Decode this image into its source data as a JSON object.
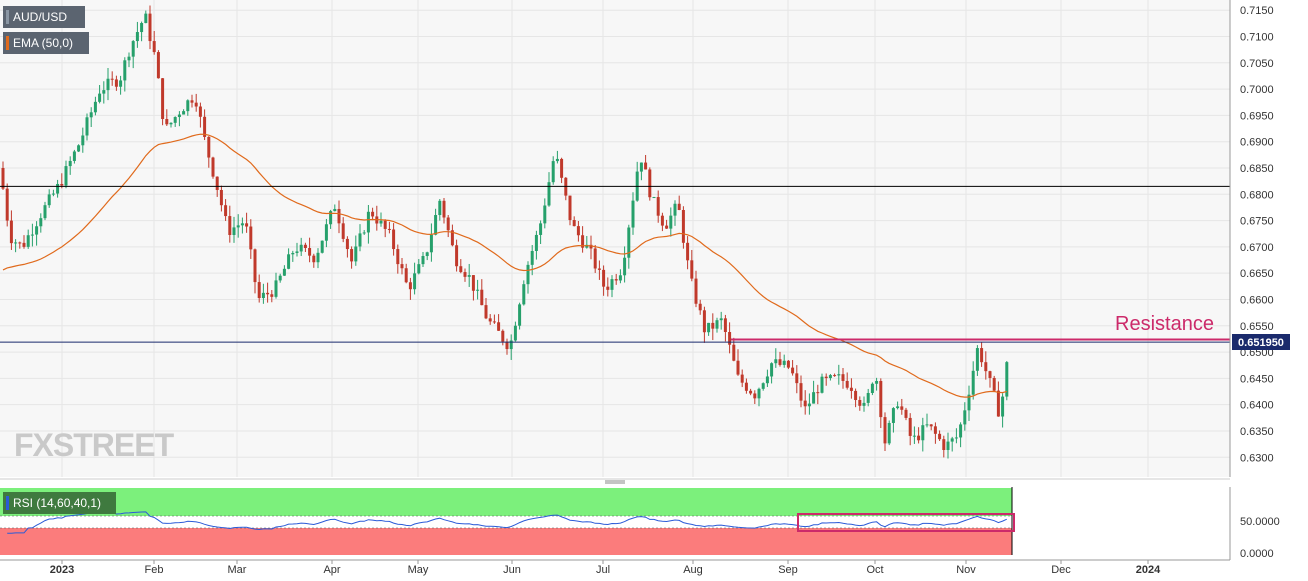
{
  "chart_data": {
    "type": "candlestick",
    "symbol": "AUD/USD",
    "overlays": [
      {
        "name": "EMA (50,0)",
        "color": "#e06a1c"
      }
    ],
    "last_price": "0.651950",
    "annotation": "Resistance",
    "watermark": "FXSTREET",
    "price_axis": {
      "ylim": [
        0.6272,
        0.7158
      ],
      "ticks": [
        "0.7150",
        "0.7100",
        "0.7050",
        "0.7000",
        "0.6950",
        "0.6900",
        "0.6850",
        "0.6800",
        "0.6750",
        "0.6700",
        "0.6650",
        "0.6600",
        "0.6550",
        "0.6500",
        "0.6450",
        "0.6400",
        "0.6350",
        "0.6300"
      ]
    },
    "x_axis": {
      "labels": [
        "2023",
        "Feb",
        "Mar",
        "Apr",
        "May",
        "Jun",
        "Jul",
        "Aug",
        "Sep",
        "Oct",
        "Nov",
        "Dec",
        "2024"
      ]
    },
    "horizontal_lines": [
      {
        "value": 0.6815,
        "color": "#000000"
      },
      {
        "value": 0.6519,
        "color": "#1a2a6c"
      }
    ],
    "resistance": {
      "value": 0.6524,
      "color": "#cc2a6a"
    },
    "candles_approx": {
      "open_start": 0.685,
      "ema_start": 0.665
    },
    "rsi": {
      "label": "RSI (14,60,40,1)",
      "ylim": [
        0,
        100
      ],
      "ticks": [
        "50.0000",
        "0.0000"
      ],
      "upper": 60,
      "lower": 40,
      "upper_color": "#7cf07c",
      "lower_color": "#fb7c7c"
    },
    "colors": {
      "up": "#26a06b",
      "down": "#c0392b",
      "ema": "#e06a1c",
      "grid": "#e6e6e6",
      "axis_text": "#333333"
    }
  }
}
